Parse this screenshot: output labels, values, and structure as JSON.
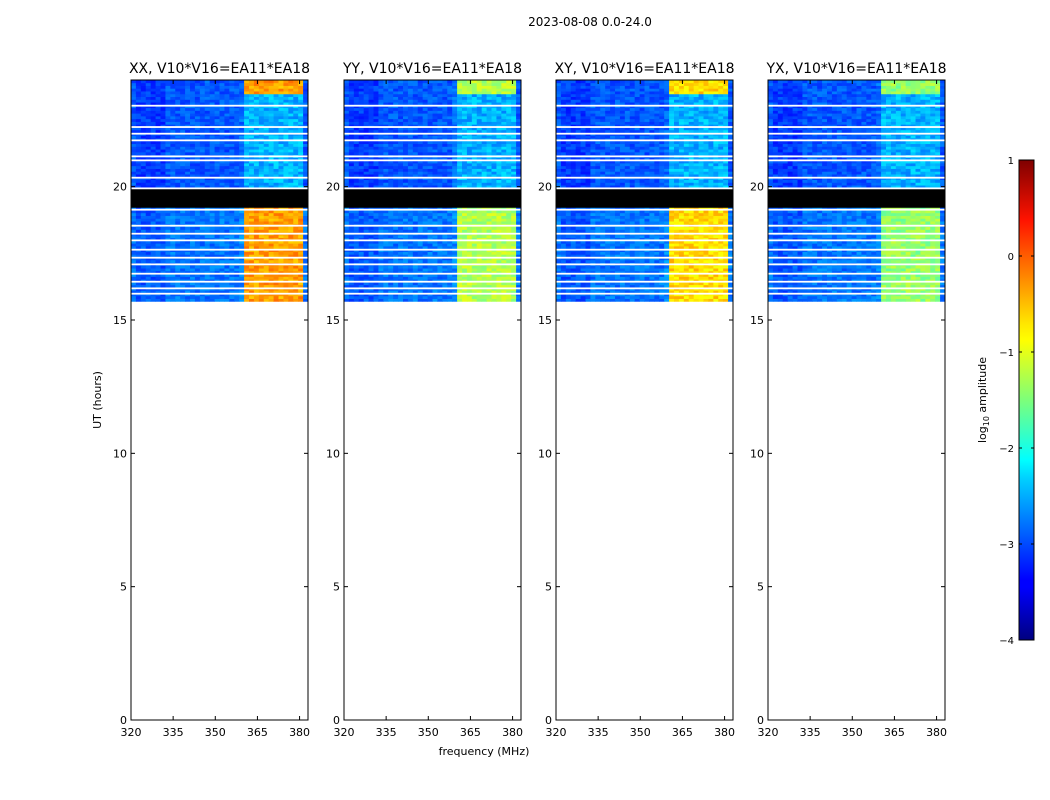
{
  "suptitle": "2023-08-08 0.0-24.0",
  "chart_data": {
    "type": "heatmap",
    "xlabel": "frequency (MHz)",
    "ylabel": "UT (hours)",
    "xlim": [
      320,
      383
    ],
    "ylim": [
      0,
      24
    ],
    "xticks": [
      320,
      335,
      350,
      365,
      380
    ],
    "yticks": [
      0,
      5,
      10,
      15,
      20
    ],
    "data_extent_hours": [
      15.7,
      24
    ],
    "flagged_gap_hours": [
      19.2,
      20.0
    ],
    "rfi_band_mhz": [
      360.5,
      380.5
    ],
    "panels": [
      {
        "title": "XX, V10*V16=EA11*EA18",
        "rfi_level": 0.72
      },
      {
        "title": "YY, V10*V16=EA11*EA18",
        "rfi_level": 0.55
      },
      {
        "title": "XY, V10*V16=EA11*EA18",
        "rfi_level": 0.66
      },
      {
        "title": "YX, V10*V16=EA11*EA18",
        "rfi_level": 0.52
      }
    ],
    "colorbar": {
      "label": "log",
      "label_sub": "10",
      "label_suffix": " amplitude",
      "range": [
        -4,
        1
      ],
      "ticks": [
        1,
        0,
        -1,
        -2,
        -3,
        -4
      ],
      "tick_labels": [
        "1",
        "0",
        "−1",
        "−2",
        "−3",
        "−4"
      ],
      "colormap": "jet"
    }
  }
}
